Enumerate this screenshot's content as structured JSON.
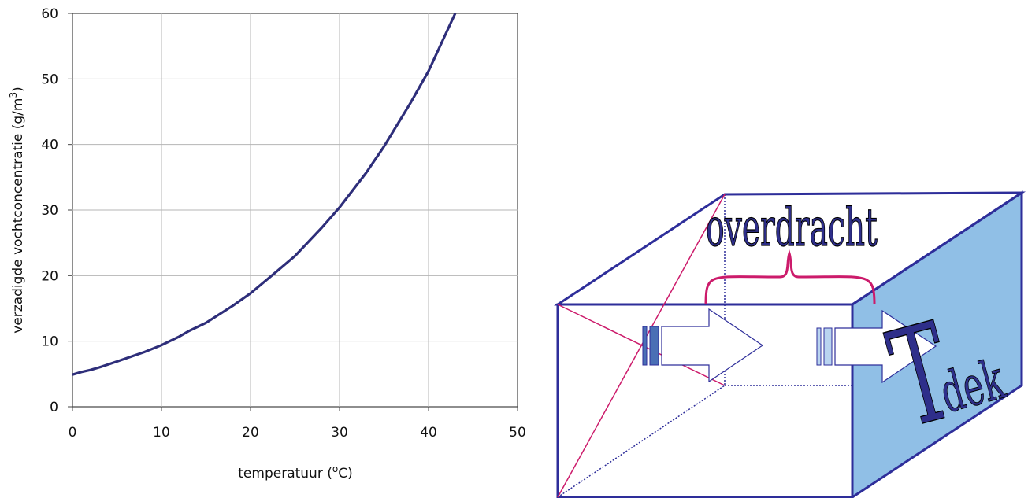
{
  "chart_data": {
    "type": "line",
    "title": "",
    "xlabel_main": "temperatuur (",
    "xlabel_sup": "o",
    "xlabel_end": "C)",
    "ylabel_main": "verzadigde vochtconcentratie (g/m",
    "ylabel_sup": "3",
    "ylabel_end": ")",
    "xlim": [
      0,
      50
    ],
    "ylim": [
      0,
      60
    ],
    "xticks": [
      0,
      10,
      20,
      30,
      40,
      50
    ],
    "yticks": [
      0,
      10,
      20,
      30,
      40,
      50,
      60
    ],
    "grid": true,
    "series": [
      {
        "color": "#2e2e7a",
        "x": [
          0,
          1,
          2,
          3,
          5,
          8,
          10,
          12,
          13,
          15,
          18,
          20,
          23,
          25,
          28,
          30,
          33,
          35,
          38,
          40,
          43
        ],
        "y": [
          4.9,
          5.3,
          5.6,
          6.0,
          6.9,
          8.3,
          9.4,
          10.7,
          11.5,
          12.8,
          15.4,
          17.3,
          20.7,
          23.0,
          27.3,
          30.4,
          35.7,
          39.7,
          46.4,
          51.2,
          60.0
        ]
      }
    ]
  },
  "diagram": {
    "label_overdracht": "overdracht",
    "label_T": "T",
    "label_dek": "dek",
    "colors": {
      "box_stroke": "#2e2e9a",
      "wall_fill": "#90bfe6",
      "diagonal": "#cc1b6b",
      "brace": "#cc1b6b",
      "bars_dark": "#4a6fb5",
      "bars_light": "#b9d4f0",
      "text_fill": "#2e2e8a"
    }
  }
}
